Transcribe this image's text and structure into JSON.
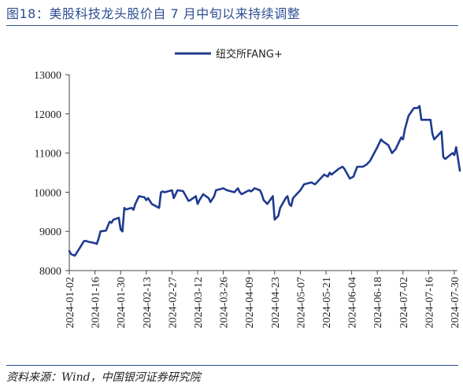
{
  "figure": {
    "title": "图18：美股科技龙头股价自 7 月中旬以来持续调整",
    "source": "资料来源：Wind，中国银河证券研究院"
  },
  "colors": {
    "line": "#1f3a8f",
    "title": "#2d4f93",
    "axis": "#444444"
  },
  "chart_data": {
    "type": "line",
    "title": "图18：美股科技龙头股价自 7 月中旬以来持续调整",
    "xlabel": "",
    "ylabel": "",
    "ylim": [
      8000,
      13000
    ],
    "yticks": [
      8000,
      9000,
      10000,
      11000,
      12000,
      13000
    ],
    "grid": false,
    "legend_position": "top-center",
    "xticks": [
      "2024-01-02",
      "2024-01-16",
      "2024-01-30",
      "2024-02-13",
      "2024-02-27",
      "2024-03-12",
      "2024-03-26",
      "2024-04-09",
      "2024-04-23",
      "2024-05-07",
      "2024-05-21",
      "2024-06-04",
      "2024-06-18",
      "2024-07-02",
      "2024-07-16",
      "2024-07-30"
    ],
    "series": [
      {
        "name": "纽交所FANG+",
        "x": [
          "2024-01-02",
          "2024-01-03",
          "2024-01-05",
          "2024-01-08",
          "2024-01-10",
          "2024-01-11",
          "2024-01-12",
          "2024-01-16",
          "2024-01-17",
          "2024-01-18",
          "2024-01-19",
          "2024-01-22",
          "2024-01-24",
          "2024-01-25",
          "2024-01-26",
          "2024-01-29",
          "2024-01-30",
          "2024-01-31",
          "2024-02-01",
          "2024-02-02",
          "2024-02-05",
          "2024-02-06",
          "2024-02-07",
          "2024-02-09",
          "2024-02-12",
          "2024-02-13",
          "2024-02-14",
          "2024-02-16",
          "2024-02-20",
          "2024-02-21",
          "2024-02-22",
          "2024-02-23",
          "2024-02-27",
          "2024-02-28",
          "2024-03-01",
          "2024-03-04",
          "2024-03-05",
          "2024-03-07",
          "2024-03-08",
          "2024-03-11",
          "2024-03-12",
          "2024-03-13",
          "2024-03-15",
          "2024-03-18",
          "2024-03-19",
          "2024-03-21",
          "2024-03-22",
          "2024-03-26",
          "2024-03-28",
          "2024-04-01",
          "2024-04-03",
          "2024-04-04",
          "2024-04-05",
          "2024-04-09",
          "2024-04-10",
          "2024-04-11",
          "2024-04-12",
          "2024-04-15",
          "2024-04-16",
          "2024-04-17",
          "2024-04-18",
          "2024-04-19",
          "2024-04-22",
          "2024-04-23",
          "2024-04-24",
          "2024-04-25",
          "2024-04-26",
          "2024-04-29",
          "2024-04-30",
          "2024-05-01",
          "2024-05-02",
          "2024-05-03",
          "2024-05-07",
          "2024-05-09",
          "2024-05-13",
          "2024-05-15",
          "2024-05-17",
          "2024-05-20",
          "2024-05-22",
          "2024-05-23",
          "2024-05-24",
          "2024-05-28",
          "2024-05-30",
          "2024-05-31",
          "2024-06-03",
          "2024-06-05",
          "2024-06-07",
          "2024-06-10",
          "2024-06-12",
          "2024-06-14",
          "2024-06-18",
          "2024-06-20",
          "2024-06-21",
          "2024-06-24",
          "2024-06-26",
          "2024-06-28",
          "2024-07-01",
          "2024-07-02",
          "2024-07-03",
          "2024-07-05",
          "2024-07-08",
          "2024-07-10",
          "2024-07-11",
          "2024-07-12",
          "2024-07-16",
          "2024-07-17",
          "2024-07-18",
          "2024-07-19",
          "2024-07-22",
          "2024-07-23",
          "2024-07-24",
          "2024-07-25",
          "2024-07-29",
          "2024-07-30",
          "2024-07-31",
          "2024-08-01",
          "2024-08-02"
        ],
        "values": [
          8500,
          8420,
          8380,
          8600,
          8750,
          8760,
          8740,
          8700,
          8680,
          8820,
          9000,
          9020,
          9250,
          9220,
          9300,
          9350,
          9050,
          9000,
          9600,
          9560,
          9600,
          9550,
          9700,
          9900,
          9870,
          9800,
          9850,
          9700,
          9600,
          10000,
          10020,
          10000,
          10050,
          9850,
          10050,
          10030,
          9950,
          9780,
          9800,
          9900,
          9700,
          9800,
          9950,
          9850,
          9750,
          9900,
          10050,
          10100,
          10050,
          10000,
          10100,
          10000,
          9950,
          10050,
          10020,
          10050,
          10100,
          10050,
          9950,
          9800,
          9750,
          9700,
          9900,
          9300,
          9350,
          9400,
          9600,
          9850,
          9900,
          9700,
          9650,
          9850,
          10050,
          10200,
          10250,
          10200,
          10300,
          10450,
          10400,
          10500,
          10450,
          10600,
          10650,
          10600,
          10350,
          10400,
          10650,
          10650,
          10700,
          10800,
          11150,
          11350,
          11300,
          11200,
          11000,
          11100,
          11400,
          11350,
          11600,
          11950,
          12150,
          12150,
          12200,
          11850,
          11850,
          11850,
          11500,
          11350,
          11500,
          11550,
          10900,
          10850,
          11000,
          10950,
          11150,
          10850,
          10550
        ]
      }
    ]
  }
}
